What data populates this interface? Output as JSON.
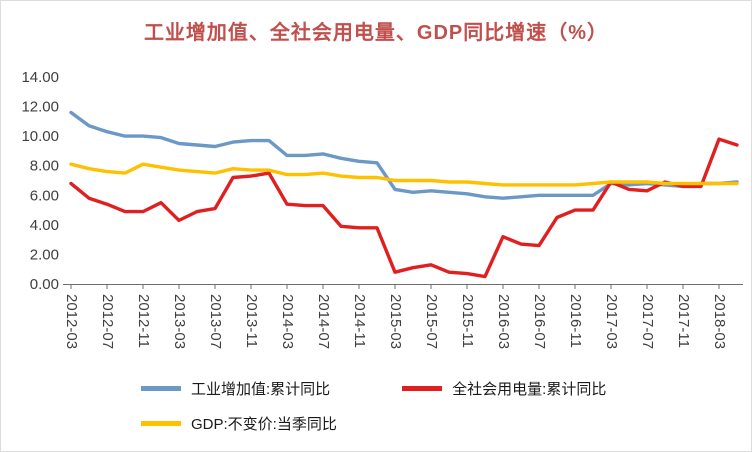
{
  "colors": {
    "title": "#C0504D",
    "axis_text": "#404040",
    "axis_line": "#6e6e6e",
    "blue": "#6C98C6",
    "red": "#E02020",
    "yellow": "#FFC000"
  },
  "chart_data": {
    "type": "line",
    "title": "工业增加值、全社会用电量、GDP同比增速（%）",
    "xlabel": "",
    "ylabel": "",
    "ylim": [
      0,
      14
    ],
    "y_ticks": [
      0,
      2,
      4,
      6,
      8,
      10,
      12,
      14
    ],
    "y_tick_format": "0.00",
    "grid": false,
    "legend_position": "bottom",
    "x_tick_every": 2,
    "x": [
      "2012-03",
      "2012-05",
      "2012-07",
      "2012-09",
      "2012-11",
      "2013-01",
      "2013-03",
      "2013-05",
      "2013-07",
      "2013-09",
      "2013-11",
      "2014-01",
      "2014-03",
      "2014-05",
      "2014-07",
      "2014-09",
      "2014-11",
      "2015-01",
      "2015-03",
      "2015-05",
      "2015-07",
      "2015-09",
      "2015-11",
      "2016-01",
      "2016-03",
      "2016-05",
      "2016-07",
      "2016-09",
      "2016-11",
      "2017-01",
      "2017-03",
      "2017-05",
      "2017-07",
      "2017-09",
      "2017-11",
      "2018-01",
      "2018-03",
      "2018-05"
    ],
    "series": [
      {
        "name": "工业增加值:累计同比",
        "color": "#6C98C6",
        "values": [
          11.6,
          10.7,
          10.3,
          10.0,
          10.0,
          9.9,
          9.5,
          9.4,
          9.3,
          9.6,
          9.7,
          9.7,
          8.7,
          8.7,
          8.8,
          8.5,
          8.3,
          8.2,
          6.4,
          6.2,
          6.3,
          6.2,
          6.1,
          5.9,
          5.8,
          5.9,
          6.0,
          6.0,
          6.0,
          6.0,
          6.8,
          6.7,
          6.8,
          6.7,
          6.6,
          6.8,
          6.8,
          6.9
        ]
      },
      {
        "name": "全社会用电量:累计同比",
        "color": "#E02020",
        "values": [
          6.8,
          5.8,
          5.4,
          4.9,
          4.9,
          5.5,
          4.3,
          4.9,
          5.1,
          7.2,
          7.3,
          7.5,
          5.4,
          5.3,
          5.3,
          3.9,
          3.8,
          3.8,
          0.8,
          1.1,
          1.3,
          0.8,
          0.7,
          0.5,
          3.2,
          2.7,
          2.6,
          4.5,
          5.0,
          5.0,
          6.9,
          6.4,
          6.3,
          6.9,
          6.6,
          6.6,
          9.8,
          9.4
        ]
      },
      {
        "name": "GDP:不变价:当季同比",
        "color": "#FFC000",
        "values": [
          8.1,
          7.8,
          7.6,
          7.5,
          8.1,
          7.9,
          7.7,
          7.6,
          7.5,
          7.8,
          7.7,
          7.7,
          7.4,
          7.4,
          7.5,
          7.3,
          7.2,
          7.2,
          7.0,
          7.0,
          7.0,
          6.9,
          6.9,
          6.8,
          6.7,
          6.7,
          6.7,
          6.7,
          6.7,
          6.8,
          6.9,
          6.9,
          6.9,
          6.8,
          6.8,
          6.8,
          6.8,
          6.8
        ]
      }
    ]
  }
}
